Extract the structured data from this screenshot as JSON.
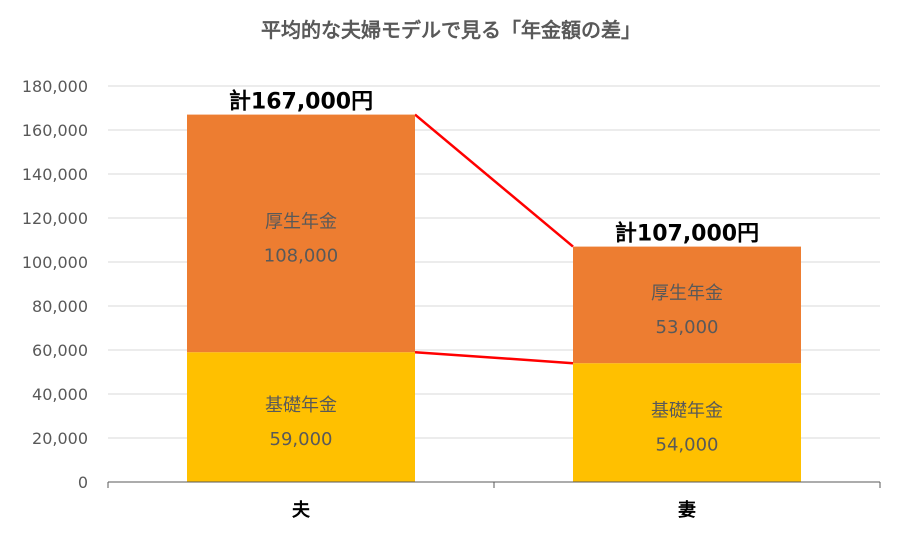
{
  "chart_data": {
    "type": "bar",
    "stacked": true,
    "title": "平均的な夫婦モデルで見る「年金額の差」",
    "categories": [
      "夫",
      "妻"
    ],
    "series": [
      {
        "name": "基礎年金",
        "values": [
          59000,
          54000
        ],
        "labels": [
          "59,000",
          "54,000"
        ],
        "color": "#FFC000"
      },
      {
        "name": "厚生年金",
        "values": [
          108000,
          53000
        ],
        "labels": [
          "108,000",
          "53,000"
        ],
        "color": "#ED7D31"
      }
    ],
    "totals": [
      "計167,000円",
      "計107,000円"
    ],
    "ylim": [
      0,
      180000
    ],
    "yticks": [
      "0",
      "20,000",
      "40,000",
      "60,000",
      "80,000",
      "100,000",
      "120,000",
      "140,000",
      "160,000",
      "180,000"
    ],
    "grid": true,
    "connector_color": "#FF0000"
  }
}
